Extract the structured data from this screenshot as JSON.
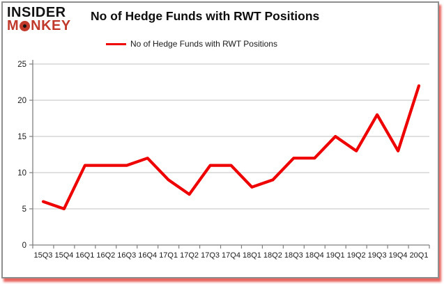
{
  "brand": {
    "line1": "INSIDER",
    "line2_pre": "M",
    "line2_post": "NKEY"
  },
  "header": {
    "title": "No of Hedge Funds with RWT Positions"
  },
  "legend": {
    "label": "No of Hedge Funds with RWT Positions"
  },
  "colors": {
    "line_red": "#ee0000",
    "logo_red": "#c0392b",
    "grid_gray": "#c0c0c0",
    "axis_gray": "#7f7f7f",
    "label_color": "#1a1a1a"
  },
  "chart_data": {
    "type": "line",
    "title": "No of Hedge Funds with RWT Positions",
    "series_name": "No of Hedge Funds with RWT Positions",
    "categories": [
      "15Q3",
      "15Q4",
      "16Q1",
      "16Q2",
      "16Q3",
      "16Q4",
      "17Q1",
      "17Q2",
      "17Q3",
      "17Q4",
      "18Q1",
      "18Q2",
      "18Q3",
      "18Q4",
      "19Q1",
      "19Q2",
      "19Q3",
      "19Q4",
      "20Q1"
    ],
    "values": [
      6,
      5,
      11,
      11,
      11,
      12,
      9,
      7,
      11,
      11,
      8,
      9,
      12,
      12,
      15,
      13,
      18,
      13,
      22
    ],
    "xlabel": "",
    "ylabel": "",
    "ylim": [
      0,
      25
    ],
    "yticks": [
      0,
      5,
      10,
      15,
      20,
      25
    ],
    "grid": true,
    "legend_position": "top-center"
  }
}
